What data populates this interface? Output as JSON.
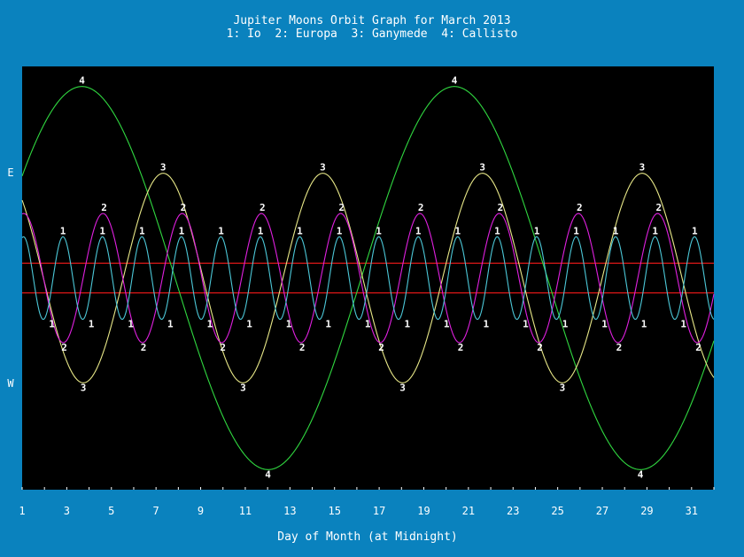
{
  "chart_data": {
    "type": "line",
    "title": "Jupiter Moons Orbit Graph for March 2013",
    "subtitle": "1: Io  2: Europa  3: Ganymede  4: Callisto",
    "xlabel": "Day of Month (at Midnight)",
    "ylabel_top": "E",
    "ylabel_bottom": "W",
    "xlim": [
      1,
      32
    ],
    "ylim": [
      -1,
      1
    ],
    "xticks": [
      "1",
      "3",
      "5",
      "7",
      "9",
      "11",
      "13",
      "15",
      "17",
      "19",
      "21",
      "23",
      "25",
      "27",
      "29",
      "31"
    ],
    "jupiter_disk": [
      -0.07,
      0.07
    ],
    "grid": false,
    "legend": "none",
    "colors": {
      "background": "#0a82be",
      "plot_background": "#000000",
      "text": "#ffffff",
      "jupiter_lines": "#e01818"
    },
    "series": [
      {
        "name": "1",
        "label": "1",
        "color": "#4cc8d8",
        "amplitude": 0.195,
        "period_days": 1.769,
        "phase_day": 2.83,
        "peaks": [
          2.83,
          4.6,
          6.37,
          8.14,
          9.91,
          11.68,
          13.44,
          15.21,
          16.98,
          18.75,
          20.52,
          22.29,
          24.06,
          25.83,
          27.6,
          29.37,
          31.14
        ],
        "troughs": [
          2.33,
          4.1,
          5.87,
          7.64,
          9.41,
          11.18,
          12.95,
          14.72,
          16.49,
          18.26,
          20.02,
          21.79,
          23.56,
          25.33,
          27.1,
          28.87,
          30.64
        ]
      },
      {
        "name": "2",
        "label": "2",
        "color": "#e020e0",
        "amplitude": 0.305,
        "period_days": 3.551,
        "phase_day": 1.07,
        "peaks": [
          4.67,
          8.22,
          11.77,
          15.32,
          18.87,
          22.43,
          25.98,
          29.53
        ],
        "troughs": [
          2.89,
          6.44,
          10.0,
          13.55,
          17.1,
          20.65,
          24.2,
          27.75,
          31.31
        ]
      },
      {
        "name": "3",
        "label": "3",
        "color": "#e8e888",
        "amplitude": 0.495,
        "period_days": 7.155,
        "phase_day": 7.32,
        "peaks": [
          7.32,
          14.47,
          21.63,
          28.78
        ],
        "troughs": [
          3.74,
          10.9,
          18.05,
          25.21
        ]
      },
      {
        "name": "4",
        "label": "4",
        "color": "#30d840",
        "amplitude": 0.905,
        "period_days": 16.689,
        "phase_day": 3.68,
        "peaks": [
          3.68,
          20.37
        ],
        "troughs": [
          12.02,
          28.71
        ]
      }
    ]
  }
}
